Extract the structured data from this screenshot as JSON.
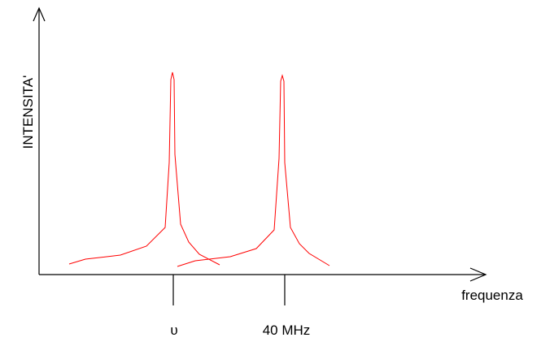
{
  "axes": {
    "y_label": "INTENSITA'",
    "x_label": "frequenza"
  },
  "ticks": [
    {
      "label": "υ"
    },
    {
      "label": "40 MHz"
    }
  ]
}
